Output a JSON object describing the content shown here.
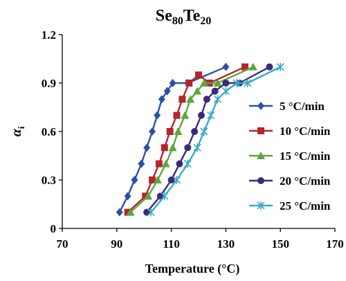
{
  "chart_data": {
    "type": "line",
    "title": {
      "base1": "Se",
      "sub1": "80",
      "base2": "Te",
      "sub2": "20"
    },
    "xlabel": "Temperature (°C)",
    "ylabel": {
      "base": "α",
      "sub": "i"
    },
    "xlim": [
      70,
      170
    ],
    "ylim": [
      0,
      1.2
    ],
    "xticks": [
      "70",
      "90",
      "110",
      "130",
      "150",
      "170"
    ],
    "yticks": [
      "0",
      "0.3",
      "0.6",
      "0.9",
      "1.2"
    ],
    "grid": false,
    "legend_position": "right",
    "series": [
      {
        "name": "5 °C/min",
        "color": "#2e4fa8",
        "marker": "diamond",
        "x": [
          91,
          94,
          96.5,
          99,
          101,
          103,
          104.8,
          106.5,
          108.5,
          110.5,
          116,
          130
        ],
        "y": [
          0.1,
          0.2,
          0.3,
          0.4,
          0.5,
          0.6,
          0.7,
          0.8,
          0.85,
          0.9,
          0.9,
          1.0
        ]
      },
      {
        "name": "10 °C/min",
        "color": "#b3262d",
        "marker": "square",
        "x": [
          94,
          100.5,
          103,
          105.5,
          107.5,
          109.5,
          112,
          114,
          116.5,
          120,
          124,
          137
        ],
        "y": [
          0.1,
          0.2,
          0.3,
          0.4,
          0.5,
          0.6,
          0.7,
          0.8,
          0.9,
          0.95,
          0.9,
          1.0
        ]
      },
      {
        "name": "15 °C/min",
        "color": "#5aa83c",
        "marker": "triangle",
        "x": [
          95,
          101.5,
          105,
          108,
          110.5,
          112.5,
          115,
          117,
          119.5,
          122,
          127,
          140
        ],
        "y": [
          0.1,
          0.2,
          0.3,
          0.4,
          0.5,
          0.6,
          0.7,
          0.8,
          0.85,
          0.9,
          0.9,
          1.0
        ]
      },
      {
        "name": "20 °C/min",
        "color": "#3a2a7a",
        "marker": "circle",
        "x": [
          101,
          106,
          110,
          113,
          116,
          118.5,
          121,
          123,
          126,
          130,
          135,
          146
        ],
        "y": [
          0.1,
          0.2,
          0.3,
          0.4,
          0.5,
          0.6,
          0.7,
          0.8,
          0.85,
          0.9,
          0.9,
          1.0
        ]
      },
      {
        "name": "25 °C/min",
        "color": "#3aa9c4",
        "marker": "star",
        "x": [
          102.5,
          107.5,
          112,
          116,
          119.5,
          122,
          124.5,
          127,
          130,
          134,
          138,
          150
        ],
        "y": [
          0.1,
          0.2,
          0.3,
          0.4,
          0.5,
          0.6,
          0.7,
          0.8,
          0.85,
          0.9,
          0.9,
          1.0
        ]
      }
    ]
  }
}
